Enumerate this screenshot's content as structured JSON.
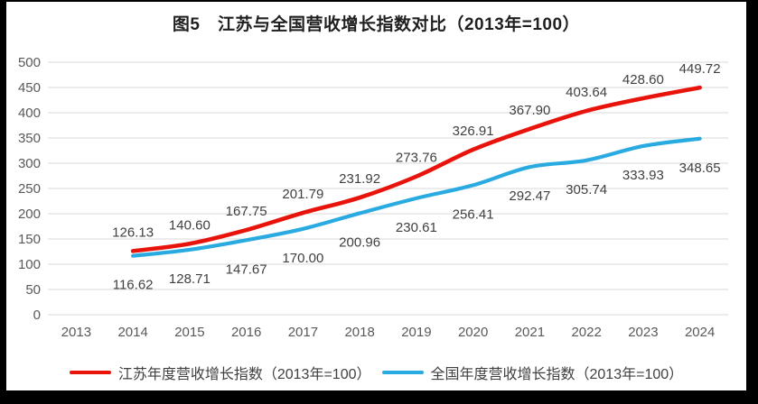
{
  "chart_data": {
    "type": "line",
    "title": "图5　江苏与全国营收增长指数对比（2013年=100）",
    "categories": [
      "2013",
      "2014",
      "2015",
      "2016",
      "2017",
      "2018",
      "2019",
      "2020",
      "2021",
      "2022",
      "2023",
      "2024"
    ],
    "series": [
      {
        "name": "江苏年度营收增长指数（2013年=100）",
        "color": "#e8140c",
        "values": [
          null,
          126.13,
          140.6,
          167.75,
          201.79,
          231.92,
          273.76,
          326.91,
          367.9,
          403.64,
          428.6,
          449.72
        ],
        "labels": [
          "",
          "126.13",
          "140.60",
          "167.75",
          "201.79",
          "231.92",
          "273.76",
          "326.91",
          "367.90",
          "403.64",
          "428.60",
          "449.72"
        ]
      },
      {
        "name": "全国年度营收增长指数（2013年=100）",
        "color": "#29abe2",
        "values": [
          null,
          116.62,
          128.71,
          147.67,
          170.0,
          200.96,
          230.61,
          256.41,
          292.47,
          305.74,
          333.93,
          348.65
        ],
        "labels": [
          "",
          "116.62",
          "128.71",
          "147.67",
          "170.00",
          "200.96",
          "230.61",
          "256.41",
          "292.47",
          "305.74",
          "333.93",
          "348.65"
        ]
      }
    ],
    "ylim": [
      0,
      500
    ],
    "yticks": [
      0,
      50,
      100,
      150,
      200,
      250,
      300,
      350,
      400,
      450,
      500
    ],
    "grid": true,
    "legend_position": "bottom",
    "colors": {
      "grid": "#d9d9d9",
      "axis_text": "#595959",
      "data_label": "#404040",
      "title_text": "#1f1f1f",
      "frame_background": "#000000",
      "chart_background": "#ffffff"
    }
  }
}
